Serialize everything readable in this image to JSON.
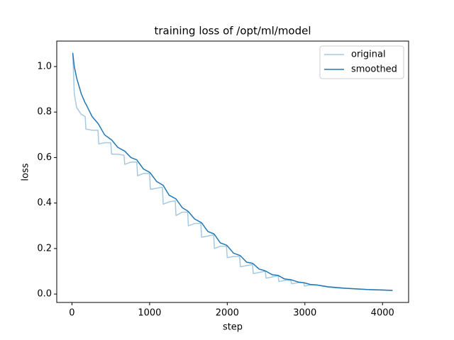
{
  "chart_data": {
    "type": "line",
    "title": "training loss of /opt/ml/model",
    "x_label": "step",
    "y_label": "loss",
    "x": [
      10,
      30,
      60,
      120,
      170,
      180,
      260,
      335,
      345,
      420,
      500,
      510,
      590,
      670,
      680,
      760,
      835,
      845,
      920,
      1000,
      1010,
      1090,
      1165,
      1175,
      1250,
      1330,
      1340,
      1420,
      1490,
      1500,
      1580,
      1660,
      1670,
      1750,
      1825,
      1835,
      1910,
      1990,
      2000,
      2080,
      2160,
      2170,
      2250,
      2325,
      2335,
      2410,
      2490,
      2500,
      2580,
      2655,
      2665,
      2740,
      2820,
      2830,
      2910,
      2985,
      2995,
      3070,
      3150,
      3300,
      3500,
      3800,
      4000,
      4130
    ],
    "series": [
      {
        "name": "original",
        "color": "#a5c9e2",
        "values": [
          1.06,
          0.88,
          0.82,
          0.79,
          0.78,
          0.725,
          0.72,
          0.72,
          0.66,
          0.665,
          0.665,
          0.615,
          0.615,
          0.61,
          0.57,
          0.58,
          0.58,
          0.52,
          0.53,
          0.53,
          0.46,
          0.465,
          0.47,
          0.395,
          0.405,
          0.41,
          0.345,
          0.36,
          0.36,
          0.3,
          0.31,
          0.31,
          0.25,
          0.255,
          0.26,
          0.2,
          0.21,
          0.21,
          0.16,
          0.165,
          0.165,
          0.12,
          0.125,
          0.13,
          0.09,
          0.095,
          0.1,
          0.07,
          0.075,
          0.08,
          0.055,
          0.06,
          0.06,
          0.045,
          0.05,
          0.05,
          0.035,
          0.04,
          0.04,
          0.03,
          0.025,
          0.02,
          0.017,
          0.016
        ]
      },
      {
        "name": "smoothed",
        "color": "#1f77b4",
        "values": [
          1.06,
          1.0,
          0.95,
          0.88,
          0.84,
          0.835,
          0.78,
          0.75,
          0.745,
          0.7,
          0.68,
          0.678,
          0.645,
          0.63,
          0.628,
          0.6,
          0.59,
          0.585,
          0.55,
          0.535,
          0.532,
          0.495,
          0.48,
          0.478,
          0.435,
          0.42,
          0.418,
          0.38,
          0.365,
          0.362,
          0.33,
          0.315,
          0.313,
          0.275,
          0.265,
          0.262,
          0.225,
          0.215,
          0.212,
          0.18,
          0.17,
          0.168,
          0.14,
          0.135,
          0.133,
          0.11,
          0.102,
          0.1,
          0.085,
          0.082,
          0.08,
          0.066,
          0.063,
          0.062,
          0.053,
          0.05,
          0.049,
          0.042,
          0.04,
          0.032,
          0.026,
          0.02,
          0.018,
          0.016
        ]
      }
    ],
    "xlim": [
      -196,
      4336
    ],
    "xticks": [
      0,
      1000,
      2000,
      3000,
      4000
    ],
    "ylim": [
      -0.037,
      1.112
    ],
    "yticks": [
      {
        "value": 0,
        "label": "0.0"
      },
      0.2,
      0.4,
      0.6,
      0.8,
      {
        "value": 1,
        "label": "1.0"
      }
    ],
    "legend": "upper right",
    "grid": false
  }
}
